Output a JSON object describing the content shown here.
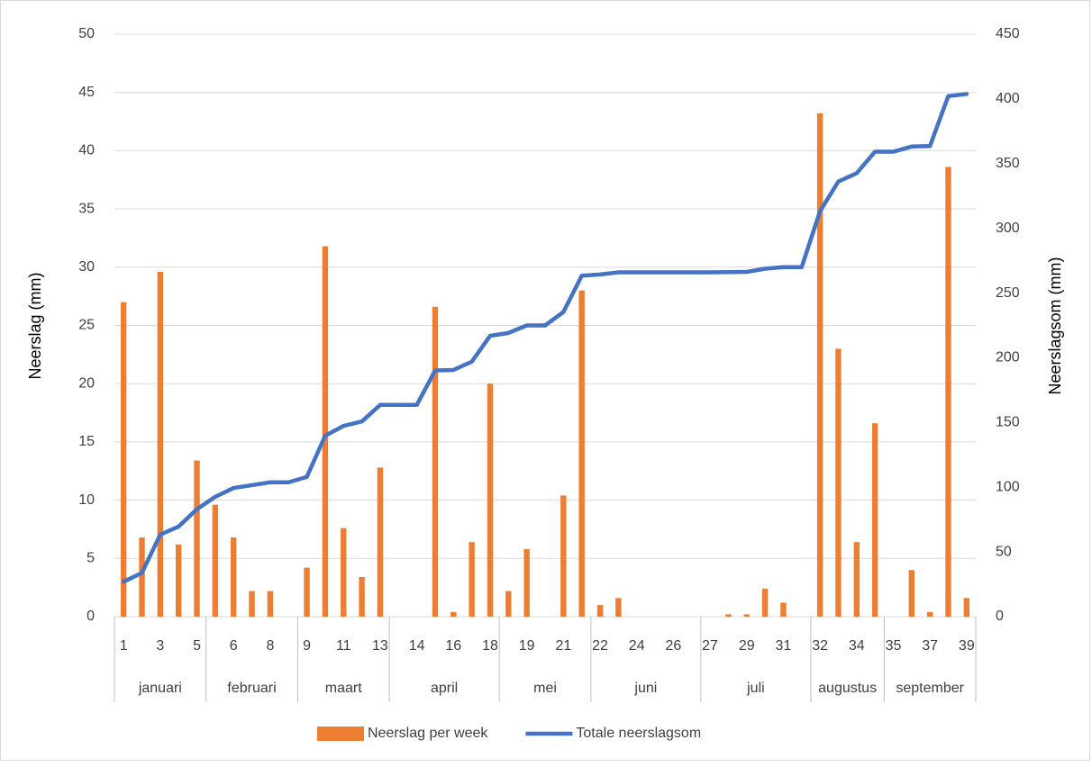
{
  "chart_data": {
    "type": "combo",
    "y_label": "Neerslag (mm)",
    "y2_label": "Neerslagsom (mm)",
    "ylim": [
      0,
      50
    ],
    "yticks": [
      0,
      5,
      10,
      15,
      20,
      25,
      30,
      35,
      40,
      45,
      50
    ],
    "y2lim": [
      0,
      450
    ],
    "y2ticks": [
      0,
      50,
      100,
      150,
      200,
      250,
      300,
      350,
      400,
      450
    ],
    "grid": true,
    "legend": "bottom",
    "groups": [
      {
        "name": "januari",
        "categories": [
          "1",
          null,
          "3",
          null,
          "5"
        ]
      },
      {
        "name": "februari",
        "categories": [
          null,
          "6",
          null,
          "8",
          null
        ]
      },
      {
        "name": "maart",
        "categories": [
          "9",
          null,
          "11",
          null,
          "13"
        ]
      },
      {
        "name": "april",
        "categories": [
          null,
          "14",
          null,
          "16",
          null,
          "18"
        ]
      },
      {
        "name": "mei",
        "categories": [
          null,
          "19",
          null,
          "21",
          null
        ]
      },
      {
        "name": "juni",
        "categories": [
          "22",
          null,
          "24",
          null,
          "26",
          null
        ]
      },
      {
        "name": "juli",
        "categories": [
          "27",
          null,
          "29",
          null,
          "31",
          null
        ]
      },
      {
        "name": "augustus",
        "categories": [
          "32",
          null,
          "34",
          null
        ]
      },
      {
        "name": "september",
        "categories": [
          "35",
          null,
          "37",
          null,
          "39"
        ]
      }
    ],
    "series": [
      {
        "name": "Neerslag per week",
        "type": "bar",
        "color": "#ED7D31",
        "values": [
          27.0,
          6.8,
          29.6,
          6.2,
          13.4,
          9.6,
          6.8,
          2.2,
          2.2,
          0,
          4.2,
          31.8,
          7.6,
          3.4,
          12.8,
          0,
          0,
          26.6,
          0.4,
          6.4,
          20.0,
          2.2,
          5.8,
          0,
          10.4,
          28.0,
          1.0,
          1.6,
          0,
          0,
          0,
          0,
          0,
          0.2,
          0.2,
          2.4,
          1.2,
          0,
          43.2,
          23.0,
          6.4,
          16.6,
          0,
          4.0,
          0.4,
          38.6,
          1.6
        ]
      },
      {
        "name": "Totale neerslagsom",
        "type": "line",
        "axis": "y2",
        "color": "#4472C4",
        "values": [
          27.0,
          33.8,
          63.4,
          69.6,
          83.0,
          92.6,
          99.4,
          101.6,
          103.8,
          103.8,
          108.0,
          139.8,
          147.4,
          150.8,
          163.6,
          163.6,
          163.6,
          190.2,
          190.6,
          197.0,
          217.0,
          219.2,
          225.0,
          225.0,
          235.4,
          263.4,
          264.4,
          266.0,
          266.0,
          266.0,
          266.0,
          266.0,
          266.0,
          266.2,
          266.4,
          268.8,
          270.0,
          270.0,
          313.2,
          336.2,
          342.6,
          359.2,
          359.2,
          363.2,
          363.6,
          402.2,
          403.8
        ]
      }
    ]
  }
}
